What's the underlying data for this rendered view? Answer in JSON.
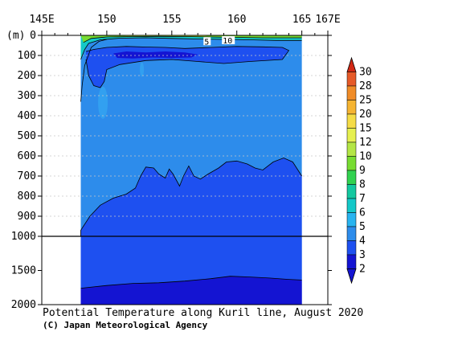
{
  "chart_data": {
    "type": "heatmap",
    "title": "Potential Temperature along Kuril line, August 2020",
    "credit": "(C) Japan Meteorological Agency",
    "x_axis": {
      "range": [
        145,
        167
      ],
      "ticks": [
        {
          "value": 145,
          "label": "145E"
        },
        {
          "value": 150,
          "label": "150"
        },
        {
          "value": 155,
          "label": "155"
        },
        {
          "value": 160,
          "label": "160"
        },
        {
          "value": 165,
          "label": "165"
        },
        {
          "value": 167,
          "label": "167E"
        }
      ]
    },
    "y_axis": {
      "unit_label": "(m)",
      "upper_range": [
        0,
        1000
      ],
      "lower_range": [
        1000,
        2000
      ],
      "upper_ticks": [
        0,
        100,
        200,
        300,
        400,
        500,
        600,
        700,
        800,
        900,
        1000
      ],
      "lower_ticks": [
        1500,
        2000
      ],
      "tick_labels": [
        "0",
        "100",
        "200",
        "300",
        "400",
        "500",
        "600",
        "700",
        "800",
        "900",
        "1000",
        "1500",
        "2000"
      ]
    },
    "section_x_range": [
      148,
      165
    ],
    "contour_levels": [
      2,
      3,
      4,
      5,
      6,
      7,
      8,
      9,
      10,
      12,
      15,
      20,
      25,
      28,
      30
    ],
    "contour_labels": [
      "5",
      "10"
    ],
    "colorbar": [
      {
        "label": "2",
        "color": "#1414d2"
      },
      {
        "label": "3",
        "color": "#1e50f0"
      },
      {
        "label": "4",
        "color": "#2d8ceb"
      },
      {
        "label": "5",
        "color": "#28b4f0"
      },
      {
        "label": "6",
        "color": "#14c8c8"
      },
      {
        "label": "7",
        "color": "#14c8a0"
      },
      {
        "label": "8",
        "color": "#32d250"
      },
      {
        "label": "9",
        "color": "#78dc32"
      },
      {
        "label": "10",
        "color": "#b4e646"
      },
      {
        "label": "12",
        "color": "#e6f050"
      },
      {
        "label": "15",
        "color": "#f5dc46"
      },
      {
        "label": "20",
        "color": "#f5b432"
      },
      {
        "label": "25",
        "color": "#f08c28"
      },
      {
        "label": "28",
        "color": "#e65a28"
      },
      {
        "label": "30",
        "color": "#d22814"
      }
    ],
    "colors": {
      "water_3_4": "#2d8ceb",
      "water_2_3": "#1e50f0",
      "water_lt_2": "#1414d2",
      "frame": "#000000",
      "grid": "#c8c8c8"
    },
    "grid": true
  }
}
